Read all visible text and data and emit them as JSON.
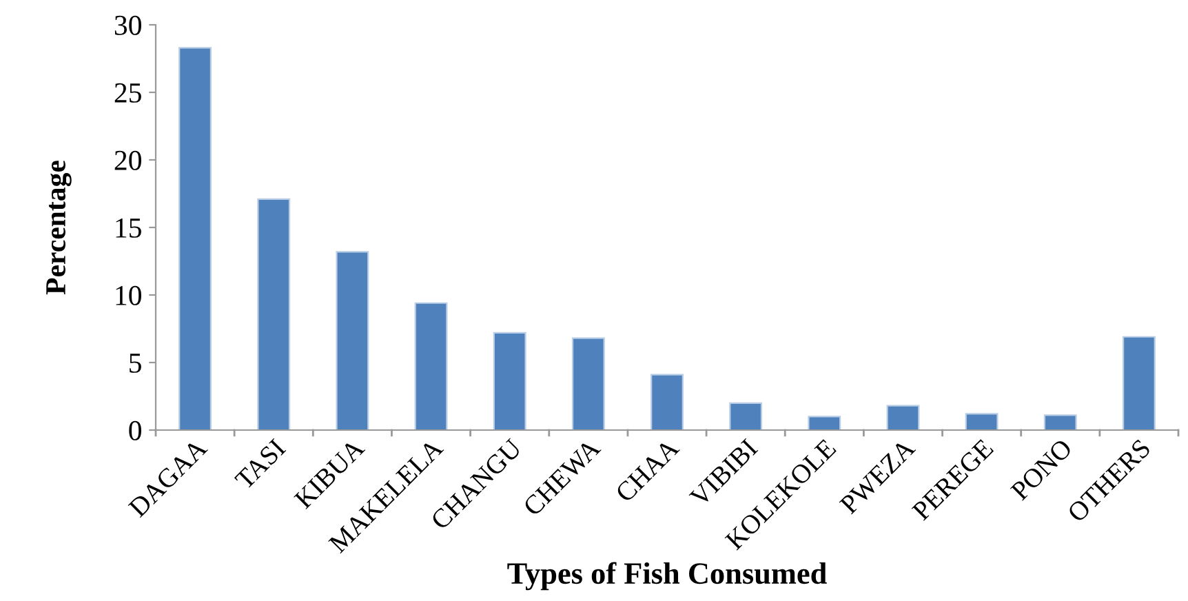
{
  "chart_data": {
    "type": "bar",
    "xlabel": "Types of Fish Consumed",
    "ylabel": "Percentage",
    "categories": [
      "DAGAA",
      "TASI",
      "KIBUA",
      "MAKELELA",
      "CHANGU",
      "CHEWA",
      "CHAA",
      "VIBIBI",
      "KOLEKOLE",
      "PWEZA",
      "PEREGE",
      "PONO",
      "OTHERS"
    ],
    "values": [
      28.3,
      17.1,
      13.2,
      9.4,
      7.2,
      6.8,
      4.1,
      2.0,
      1.0,
      1.8,
      1.2,
      1.1,
      6.9
    ],
    "color": "#4f81bd",
    "ylim": [
      0,
      30
    ],
    "yticks": [
      0,
      5,
      10,
      15,
      20,
      25,
      30
    ],
    "grid": false
  }
}
